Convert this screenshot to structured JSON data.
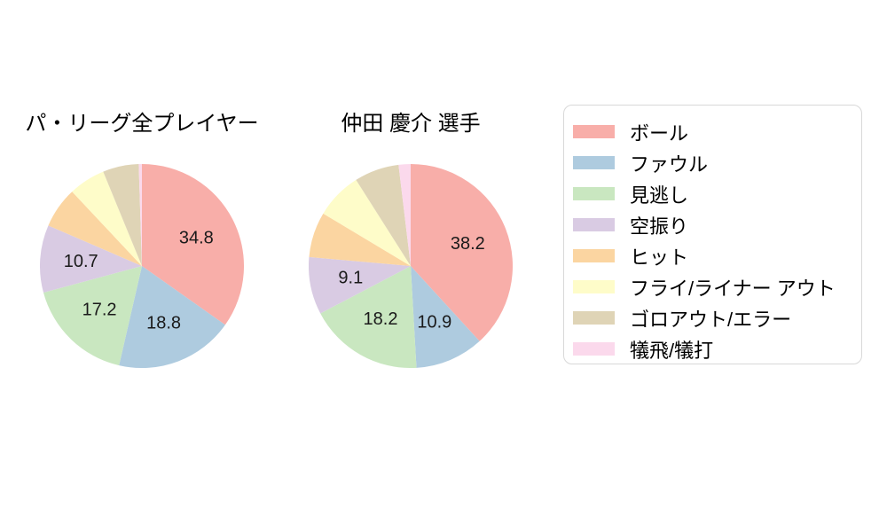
{
  "figure": {
    "background_color": "#ffffff",
    "text_color": "#000000",
    "slice_label_color": "#1a1a1a",
    "legend_border_color": "#d8d8d8"
  },
  "legend": {
    "position": "right",
    "items": [
      {
        "label": "ボール",
        "color": "#F8AEA9"
      },
      {
        "label": "ファウル",
        "color": "#AECBDF"
      },
      {
        "label": "見逃し",
        "color": "#C9E7C0"
      },
      {
        "label": "空振り",
        "color": "#D9CBE3"
      },
      {
        "label": "ヒット",
        "color": "#FBD5A1"
      },
      {
        "label": "フライ/ライナー アウト",
        "color": "#FEFCC9"
      },
      {
        "label": "ゴロアウト/エラー",
        "color": "#DFD4B6"
      },
      {
        "label": "犠飛/犠打",
        "color": "#FBD9EC"
      }
    ]
  },
  "chart_data": [
    {
      "type": "pie",
      "title": "パ・リーグ全プレイヤー",
      "categories": [
        "ボール",
        "ファウル",
        "見逃し",
        "空振り",
        "ヒット",
        "フライ/ライナー アウト",
        "ゴロアウト/エラー",
        "犠飛/犠打"
      ],
      "values": [
        34.8,
        18.8,
        17.2,
        10.7,
        6.5,
        5.8,
        5.7,
        0.5
      ],
      "value_labels_shown": [
        "34.8",
        "18.8",
        "17.2",
        "10.7",
        "",
        "",
        "",
        ""
      ],
      "colors": [
        "#F8AEA9",
        "#AECBDF",
        "#C9E7C0",
        "#D9CBE3",
        "#FBD5A1",
        "#FEFCC9",
        "#DFD4B6",
        "#FBD9EC"
      ],
      "start_angle": "12-oclock",
      "direction": "clockwise",
      "legend_position": "right",
      "grid": false
    },
    {
      "type": "pie",
      "title": "仲田 慶介  選手",
      "categories": [
        "ボール",
        "ファウル",
        "見逃し",
        "空振り",
        "ヒット",
        "フライ/ライナー アウト",
        "ゴロアウト/エラー",
        "犠飛/犠打"
      ],
      "values": [
        38.2,
        10.9,
        18.2,
        9.1,
        7.2,
        7.4,
        7.1,
        1.9
      ],
      "value_labels_shown": [
        "38.2",
        "10.9",
        "18.2",
        "9.1",
        "",
        "",
        "",
        ""
      ],
      "colors": [
        "#F8AEA9",
        "#AECBDF",
        "#C9E7C0",
        "#D9CBE3",
        "#FBD5A1",
        "#FEFCC9",
        "#DFD4B6",
        "#FBD9EC"
      ],
      "start_angle": "12-oclock",
      "direction": "clockwise",
      "legend_position": "right",
      "grid": false
    }
  ]
}
